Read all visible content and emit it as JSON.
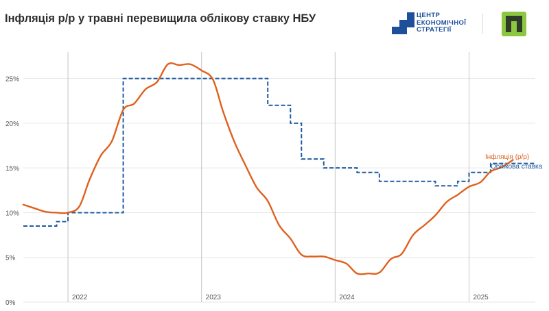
{
  "header": {
    "title": "Інфляція р/р у травні перевищила облікову ставку НБУ",
    "brand_lines": [
      "ЦЕНТР",
      "ЕКОНОМІЧНОЇ",
      "СТРАТЕГІЇ"
    ]
  },
  "colors": {
    "inflation": "#e0601e",
    "rate": "#1f5ba0",
    "grid": "#e6e6e6",
    "year_line": "#c4c4c4",
    "tick_text": "#555555",
    "brand_blue": "#1e4f99",
    "brand_green": "#8dc63f"
  },
  "chart_data": {
    "type": "line",
    "title": "Інфляція р/р у травні перевищила облікову ставку НБУ",
    "xlabel": "",
    "ylabel": "",
    "ylim": [
      0,
      27.5
    ],
    "xlim": [
      "2021-09-01",
      "2025-07-01"
    ],
    "yticks": [
      0,
      5,
      10,
      15,
      20,
      25
    ],
    "ytick_labels": [
      "0%",
      "5%",
      "10%",
      "15%",
      "20%",
      "25%"
    ],
    "x_tick_labels": [
      "2022",
      "2023",
      "2024",
      "2025"
    ],
    "x_tick_dates": [
      "2022-01-01",
      "2023-01-01",
      "2024-01-01",
      "2025-01-01"
    ],
    "grid": true,
    "legend": "inline labels at right end of lines",
    "series": [
      {
        "name": "Інфляція (р/р)",
        "style": "solid",
        "x": [
          "2021-09-01",
          "2021-10-01",
          "2021-11-01",
          "2021-12-01",
          "2022-01-01",
          "2022-02-01",
          "2022-03-01",
          "2022-04-01",
          "2022-05-01",
          "2022-06-01",
          "2022-07-01",
          "2022-08-01",
          "2022-09-01",
          "2022-10-01",
          "2022-11-01",
          "2022-12-01",
          "2023-01-01",
          "2023-02-01",
          "2023-03-01",
          "2023-04-01",
          "2023-05-01",
          "2023-06-01",
          "2023-07-01",
          "2023-08-01",
          "2023-09-01",
          "2023-10-01",
          "2023-11-01",
          "2023-12-01",
          "2024-01-01",
          "2024-02-01",
          "2024-03-01",
          "2024-04-01",
          "2024-05-01",
          "2024-06-01",
          "2024-07-01",
          "2024-08-01",
          "2024-09-01",
          "2024-10-01",
          "2024-11-01",
          "2024-12-01",
          "2025-01-01",
          "2025-02-01",
          "2025-03-01",
          "2025-04-01",
          "2025-05-01"
        ],
        "values": [
          10.9,
          10.5,
          10.1,
          10.0,
          10.0,
          10.7,
          13.7,
          16.4,
          18.0,
          21.5,
          22.2,
          23.8,
          24.6,
          26.6,
          26.5,
          26.6,
          25.9,
          24.9,
          21.3,
          17.9,
          15.3,
          12.8,
          11.3,
          8.6,
          7.1,
          5.3,
          5.1,
          5.1,
          4.7,
          4.3,
          3.2,
          3.2,
          3.3,
          4.8,
          5.4,
          7.5,
          8.6,
          9.7,
          11.2,
          12.0,
          12.9,
          13.4,
          14.6,
          15.1,
          15.9
        ]
      },
      {
        "name": "Облікова ставка",
        "style": "dashed-step",
        "x": [
          "2021-09-01",
          "2021-12-01",
          "2022-01-01",
          "2022-06-01",
          "2023-07-01",
          "2023-08-01",
          "2023-09-01",
          "2023-10-01",
          "2023-12-01",
          "2024-03-01",
          "2024-04-01",
          "2024-05-01",
          "2024-10-01",
          "2024-12-01",
          "2025-01-01",
          "2025-03-01",
          "2025-07-01"
        ],
        "values": [
          8.5,
          9.0,
          10.0,
          25.0,
          22.0,
          22.0,
          20.0,
          16.0,
          15.0,
          14.5,
          14.5,
          13.5,
          13.0,
          13.5,
          14.5,
          15.5,
          15.5
        ]
      }
    ]
  }
}
